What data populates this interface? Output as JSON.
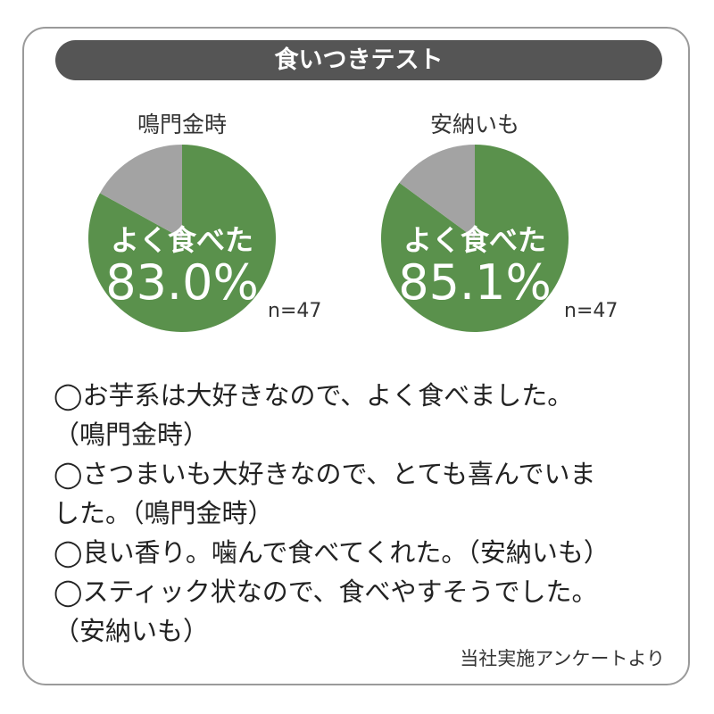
{
  "title": "食いつきテスト",
  "chart_data": [
    {
      "type": "pie",
      "title": "鳴門金時",
      "label": "よく食べた",
      "value_text": "83.0%",
      "n": "n=47",
      "slices": [
        {
          "value": 83.0,
          "color": "#5a914c"
        },
        {
          "value": 17.0,
          "color": "#a3a3a3"
        }
      ]
    },
    {
      "type": "pie",
      "title": "安納いも",
      "label": "よく食べた",
      "value_text": "85.1%",
      "n": "n=47",
      "slices": [
        {
          "value": 85.1,
          "color": "#5a914c"
        },
        {
          "value": 14.9,
          "color": "#a3a3a3"
        }
      ]
    }
  ],
  "comments": [
    "◯お芋系は大好きなので、よく食べました。",
    "（鳴門金時）",
    "◯さつまいも大好きなので、とても喜んでいま",
    "した。（鳴門金時）",
    "◯良い香り。噛んで食べてくれた。（安納いも）",
    "◯スティック状なので、食べやすそうでした。",
    "（安納いも）"
  ],
  "footer": "当社実施アンケートより"
}
